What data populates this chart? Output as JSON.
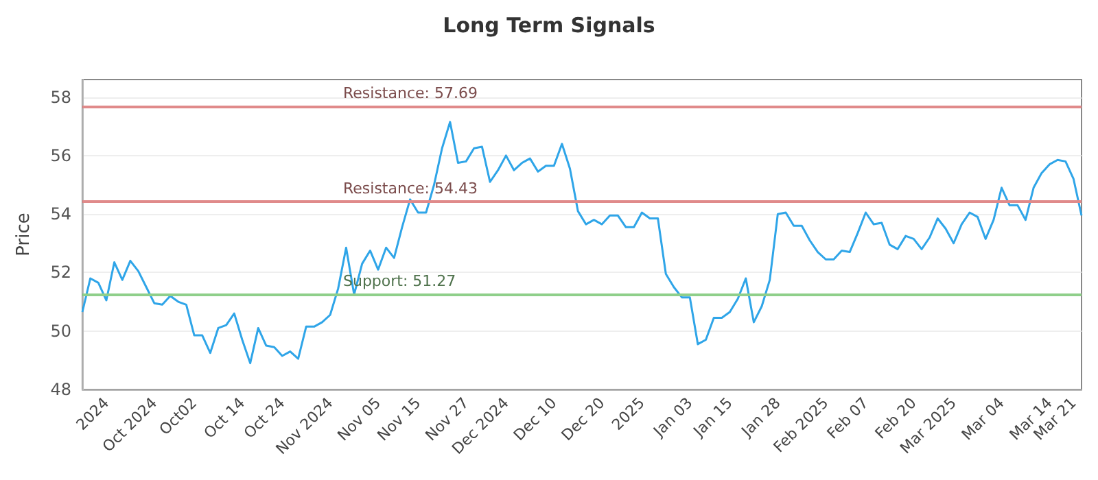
{
  "chart_data": {
    "type": "line",
    "title": "Long Term Signals",
    "ylabel": "Price",
    "categories": [
      null,
      null,
      null,
      "2024",
      null,
      null,
      null,
      null,
      null,
      "Oct 2024",
      null,
      null,
      null,
      null,
      "Oct02",
      null,
      null,
      null,
      null,
      null,
      "Oct 14",
      null,
      null,
      null,
      null,
      "Oct 24",
      null,
      null,
      null,
      null,
      null,
      "Nov 2024",
      null,
      null,
      null,
      null,
      null,
      "Nov 05",
      null,
      null,
      null,
      null,
      "Nov 15",
      null,
      null,
      null,
      null,
      null,
      "Nov 27",
      null,
      null,
      null,
      null,
      "Dec 2024",
      null,
      null,
      null,
      null,
      null,
      "Dec 10",
      null,
      null,
      null,
      null,
      null,
      "Dec 20",
      null,
      null,
      null,
      null,
      "2025",
      null,
      null,
      null,
      null,
      null,
      "Jan 03",
      null,
      null,
      null,
      null,
      "Jan 15",
      null,
      null,
      null,
      null,
      null,
      "Jan 28",
      null,
      null,
      null,
      null,
      null,
      "Feb 2025",
      null,
      null,
      null,
      null,
      "Feb 07",
      null,
      null,
      null,
      null,
      null,
      "Feb 20",
      null,
      null,
      null,
      null,
      "Mar 2025",
      null,
      null,
      null,
      null,
      null,
      "Mar 04",
      null,
      null,
      null,
      null,
      null,
      "Mar 14",
      null,
      null,
      "Mar 21",
      null
    ],
    "series": [
      {
        "color": "#2fa5e8",
        "values": [
          50.65,
          51.8,
          51.65,
          51.05,
          52.35,
          51.75,
          52.4,
          52.05,
          51.5,
          50.95,
          50.9,
          51.2,
          51.0,
          50.9,
          49.85,
          49.85,
          49.25,
          50.1,
          50.2,
          50.6,
          49.7,
          48.9,
          50.1,
          49.5,
          49.45,
          49.15,
          49.3,
          49.05,
          50.15,
          50.15,
          50.3,
          50.55,
          51.45,
          52.85,
          51.25,
          52.3,
          52.75,
          52.1,
          52.85,
          52.5,
          53.55,
          54.5,
          54.05,
          54.05,
          55.0,
          56.25,
          57.15,
          55.75,
          55.8,
          56.25,
          56.3,
          55.1,
          55.5,
          56.0,
          55.5,
          55.75,
          55.9,
          55.45,
          55.65,
          55.65,
          56.4,
          55.55,
          54.1,
          53.65,
          53.8,
          53.65,
          53.95,
          53.95,
          53.55,
          53.55,
          54.05,
          53.85,
          53.85,
          51.95,
          51.5,
          51.15,
          51.15,
          49.55,
          49.7,
          50.45,
          50.45,
          50.65,
          51.1,
          51.8,
          50.3,
          50.85,
          51.75,
          54.0,
          54.05,
          53.6,
          53.6,
          53.1,
          52.7,
          52.45,
          52.45,
          52.75,
          52.7,
          53.35,
          54.05,
          53.65,
          53.7,
          52.95,
          52.8,
          53.25,
          53.15,
          52.8,
          53.2,
          53.85,
          53.5,
          53.0,
          53.65,
          54.05,
          53.9,
          53.15,
          53.8,
          54.9,
          54.3,
          54.3,
          53.8,
          54.9,
          55.4,
          55.7,
          55.85,
          55.8,
          55.2,
          53.95
        ]
      }
    ],
    "ylim": [
      48,
      58.6
    ],
    "yticks": [
      48,
      50,
      52,
      54,
      56,
      58
    ],
    "grid": "y",
    "marker": "none",
    "line_style": "solid",
    "ref_lines": [
      {
        "axis": "y",
        "value": 57.69,
        "label": "Resistance: 57.69",
        "color": "#e08a8a"
      },
      {
        "axis": "y",
        "value": 54.43,
        "label": "Resistance: 54.43",
        "color": "#e08a8a"
      },
      {
        "axis": "y",
        "value": 51.27,
        "label": "Support: 51.27",
        "color": "#8fcf8a"
      }
    ]
  }
}
